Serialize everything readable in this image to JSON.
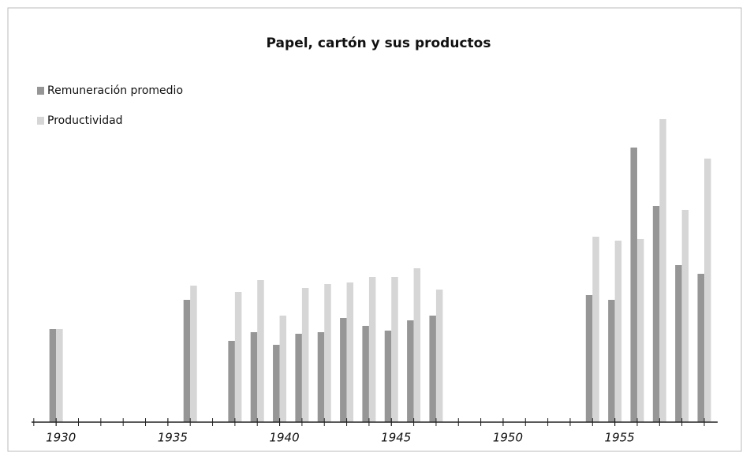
{
  "chart_data": {
    "type": "bar",
    "title": "Papel, cartón y sus productos",
    "x": [
      1930,
      1936,
      1938,
      1939,
      1940,
      1941,
      1942,
      1943,
      1944,
      1945,
      1946,
      1947,
      1954,
      1955,
      1956,
      1957,
      1958,
      1959
    ],
    "series": [
      {
        "name": "Remuneración promedio",
        "color": "#969696",
        "values": [
          118,
          155,
          103,
          114,
          98,
          112,
          114,
          132,
          122,
          116,
          129,
          135,
          161,
          155,
          348,
          274,
          199,
          188
        ]
      },
      {
        "name": "Productividad",
        "color": "#d6d6d6",
        "values": [
          118,
          173,
          165,
          180,
          135,
          170,
          175,
          177,
          184,
          184,
          195,
          168,
          235,
          230,
          232,
          384,
          269,
          334
        ]
      }
    ],
    "xlim": [
      1928.9,
      1959.6
    ],
    "xticks": [
      1930,
      1935,
      1940,
      1945,
      1950,
      1955
    ],
    "ylim": [
      0,
      420
    ],
    "legend": "top-left"
  }
}
